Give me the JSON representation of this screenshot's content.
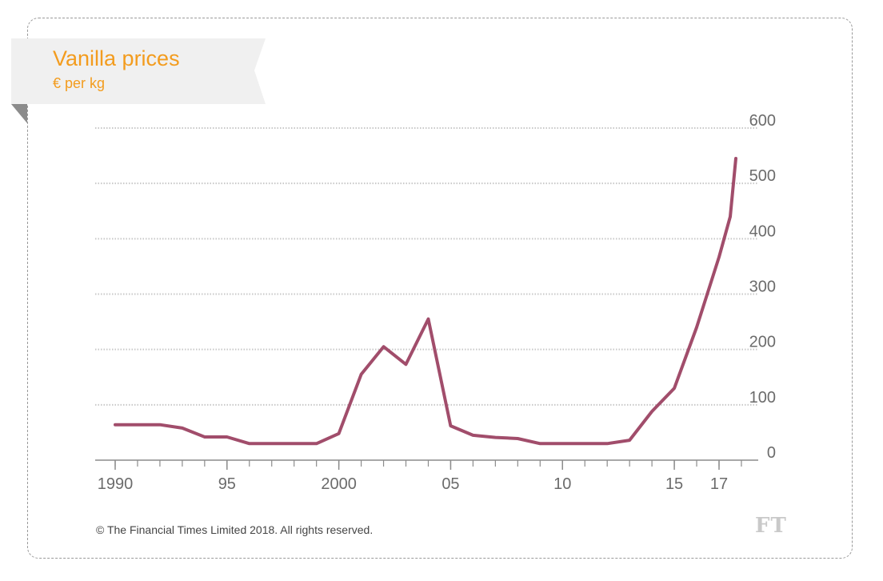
{
  "colors": {
    "accent": "#f39c1e",
    "line": "#a14d6b",
    "banner": "#f0f0f0",
    "banner_fold": "#8c8c8c",
    "grid": "#c8c8c8",
    "axis": "#8c8c8c",
    "text": "#6b6b6b"
  },
  "footer": {
    "copyright": "© The Financial Times Limited 2018. All rights reserved."
  },
  "logo": {
    "text": "FT"
  },
  "chart_data": {
    "type": "line",
    "title": "Vanilla prices",
    "subtitle": "€ per kg",
    "xlabel": "",
    "ylabel": "",
    "xlim": [
      1989,
      2019
    ],
    "ylim": [
      0,
      600
    ],
    "grid": true,
    "y_axis_side": "right",
    "y_ticks": [
      {
        "value": 0,
        "label": "0"
      },
      {
        "value": 100,
        "label": "100"
      },
      {
        "value": 200,
        "label": "200"
      },
      {
        "value": 300,
        "label": "300"
      },
      {
        "value": 400,
        "label": "400"
      },
      {
        "value": 500,
        "label": "500"
      },
      {
        "value": 600,
        "label": "600"
      }
    ],
    "x_ticks": [
      {
        "value": 1990,
        "label": "1990"
      },
      {
        "value": 1995,
        "label": "95"
      },
      {
        "value": 2000,
        "label": "2000"
      },
      {
        "value": 2005,
        "label": "05"
      },
      {
        "value": 2010,
        "label": "10"
      },
      {
        "value": 2015,
        "label": "15"
      },
      {
        "value": 2017,
        "label": "17"
      }
    ],
    "minor_x_ticks": [
      1990,
      1991,
      1992,
      1993,
      1994,
      1995,
      1996,
      1997,
      1998,
      1999,
      2000,
      2001,
      2002,
      2003,
      2004,
      2005,
      2006,
      2007,
      2008,
      2009,
      2010,
      2011,
      2012,
      2013,
      2014,
      2015,
      2016,
      2017,
      2018
    ],
    "series": [
      {
        "name": "Vanilla price",
        "x": [
          1990,
          1991,
          1992,
          1993,
          1994,
          1995,
          1996,
          1997,
          1998,
          1999,
          2000,
          2001,
          2002,
          2003,
          2004,
          2005,
          2006,
          2007,
          2008,
          2009,
          2010,
          2011,
          2012,
          2013,
          2014,
          2015,
          2016,
          2017,
          2017.5,
          2017.75
        ],
        "values": [
          64,
          64,
          64,
          58,
          42,
          42,
          30,
          30,
          30,
          30,
          48,
          155,
          205,
          173,
          255,
          62,
          45,
          41,
          39,
          30,
          30,
          30,
          30,
          36,
          88,
          130,
          240,
          367,
          440,
          545
        ]
      }
    ]
  }
}
